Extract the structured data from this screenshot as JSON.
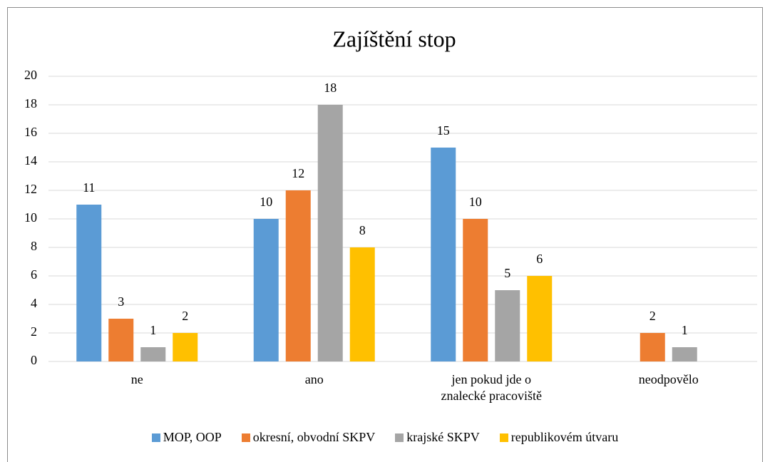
{
  "chart_data": {
    "type": "bar",
    "title": "Zajíštění stop",
    "categories": [
      "ne",
      "ano",
      "jen pokud jde o znalecké pracoviště",
      "neodpovělo"
    ],
    "series": [
      {
        "name": "MOP, OOP",
        "color": "#5b9bd5",
        "values": [
          11,
          10,
          15,
          null
        ]
      },
      {
        "name": "okresní, obvodní SKPV",
        "color": "#ed7d31",
        "values": [
          3,
          12,
          10,
          2
        ]
      },
      {
        "name": "krajské SKPV",
        "color": "#a5a5a5",
        "values": [
          1,
          18,
          5,
          1
        ]
      },
      {
        "name": "republikovém útvaru",
        "color": "#ffc000",
        "values": [
          2,
          8,
          6,
          null
        ]
      }
    ],
    "ylim": [
      0,
      20
    ],
    "yticks": [
      0,
      2,
      4,
      6,
      8,
      10,
      12,
      14,
      16,
      18,
      20
    ],
    "grid": true,
    "legend": "bottom"
  }
}
